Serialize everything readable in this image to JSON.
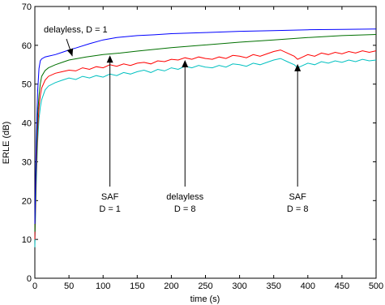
{
  "chart_data": {
    "type": "line",
    "title": "",
    "xlabel": "time (s)",
    "ylabel": "ERLE (dB)",
    "xlim": [
      0,
      500
    ],
    "ylim": [
      0,
      70
    ],
    "grid": false,
    "legend": "none",
    "x_ticks": [
      0,
      50,
      100,
      150,
      200,
      250,
      300,
      350,
      400,
      450,
      500
    ],
    "y_ticks": [
      0,
      10,
      20,
      30,
      40,
      50,
      60,
      70
    ],
    "series": [
      {
        "color": "#0000ff",
        "x": [
          0,
          2,
          4,
          6,
          8,
          10,
          15,
          20,
          30,
          40,
          50,
          60,
          80,
          100,
          120,
          150,
          175,
          200,
          250,
          300,
          350,
          400,
          450,
          500
        ],
        "y": [
          14,
          35,
          48,
          54,
          56,
          56.5,
          57,
          57.2,
          57.6,
          58.2,
          58.8,
          59.3,
          60.4,
          61.4,
          62,
          62.5,
          62.7,
          63,
          63.3,
          63.6,
          63.8,
          64,
          64.1,
          64.2
        ]
      },
      {
        "color": "#007000",
        "x": [
          0,
          2,
          4,
          6,
          8,
          10,
          15,
          20,
          30,
          40,
          50,
          75,
          100,
          125,
          150,
          200,
          250,
          300,
          350,
          400,
          450,
          500
        ],
        "y": [
          12,
          30,
          42,
          47,
          50,
          52,
          53.5,
          54.2,
          55,
          55.6,
          56.2,
          57,
          57.6,
          58,
          58.5,
          59.4,
          60.1,
          60.8,
          61.4,
          62,
          62.5,
          62.8
        ]
      },
      {
        "color": "#ff0000",
        "x": [
          0,
          2,
          4,
          6,
          8,
          10,
          15,
          20,
          30,
          40,
          50,
          60,
          70,
          80,
          90,
          100,
          110,
          120,
          130,
          140,
          150,
          160,
          170,
          180,
          190,
          200,
          210,
          220,
          230,
          240,
          250,
          260,
          270,
          280,
          290,
          300,
          310,
          320,
          330,
          340,
          350,
          360,
          370,
          380,
          385,
          390,
          400,
          410,
          420,
          430,
          440,
          450,
          460,
          470,
          480,
          490,
          500
        ],
        "y": [
          10,
          27,
          38,
          44,
          47,
          49,
          51,
          52,
          52.8,
          53.2,
          53.6,
          53.4,
          54.2,
          53.8,
          54.5,
          54.2,
          55,
          54.6,
          55.2,
          54.8,
          55.4,
          55.6,
          55.2,
          56,
          55.8,
          56.4,
          56.2,
          56.8,
          56.4,
          57,
          56.6,
          56.4,
          57,
          56.6,
          57.4,
          57.2,
          56.8,
          57.6,
          57.2,
          57.8,
          58.4,
          58.8,
          58,
          57.2,
          56.4,
          56.8,
          57.6,
          57.2,
          58,
          57.6,
          58.2,
          57.8,
          58.4,
          58,
          58.6,
          58.2,
          58.6
        ]
      },
      {
        "color": "#00c0c0",
        "x": [
          0,
          2,
          4,
          6,
          8,
          10,
          15,
          20,
          30,
          40,
          50,
          60,
          70,
          80,
          90,
          100,
          110,
          120,
          130,
          140,
          150,
          160,
          170,
          180,
          190,
          200,
          210,
          220,
          230,
          240,
          250,
          260,
          270,
          280,
          290,
          300,
          310,
          320,
          330,
          340,
          350,
          360,
          370,
          380,
          385,
          390,
          400,
          410,
          420,
          430,
          440,
          450,
          460,
          470,
          480,
          490,
          500
        ],
        "y": [
          8,
          24,
          35,
          41,
          44,
          46,
          48.5,
          49.5,
          50.4,
          51,
          51.6,
          51.2,
          52,
          51.6,
          52.2,
          51.8,
          52.6,
          52.2,
          53,
          52.6,
          53.2,
          53.6,
          53,
          53.8,
          53.4,
          54.2,
          53.8,
          54.6,
          54.2,
          54.8,
          54.4,
          54.2,
          54.8,
          54.4,
          55.2,
          55,
          54.6,
          55.4,
          55,
          55.6,
          56.2,
          56.6,
          55.8,
          55,
          54.2,
          54.6,
          55.4,
          55,
          55.8,
          55.4,
          56,
          55.6,
          56.2,
          55.8,
          56.4,
          56,
          56.2
        ]
      }
    ],
    "annotations": [
      {
        "text": "delayless, D = 1",
        "arrow_to": [
          55,
          57.2
        ]
      },
      {
        "text": "SAF",
        "text2": "D = 1",
        "arrow_to": [
          110,
          57.4
        ]
      },
      {
        "text": "delayless",
        "text2": "D = 8",
        "arrow_to": [
          220,
          56.2
        ]
      },
      {
        "text": "SAF",
        "text2": "D = 8",
        "arrow_to": [
          385,
          55.2
        ]
      }
    ]
  }
}
